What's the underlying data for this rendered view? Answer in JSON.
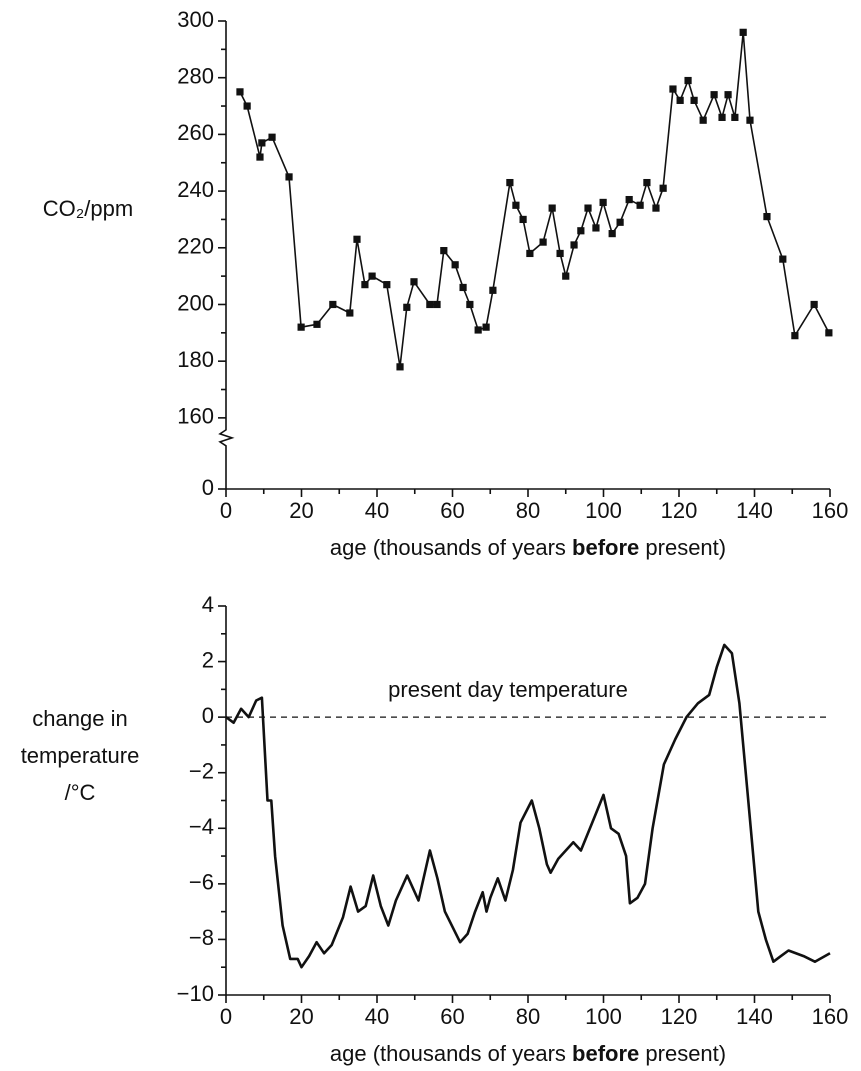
{
  "chart_data": [
    {
      "type": "scatter-line",
      "ylabel": "CO₂/ppm",
      "xlabel_parts": [
        "age (thousands of years ",
        "before",
        " present)"
      ],
      "x": [
        3.7,
        5.6,
        9.0,
        9.5,
        12.2,
        16.7,
        19.9,
        24.1,
        28.3,
        32.8,
        34.7,
        36.8,
        38.7,
        42.6,
        46.1,
        47.9,
        49.8,
        54.0,
        55.9,
        57.7,
        60.7,
        62.8,
        64.6,
        66.8,
        68.9,
        70.7,
        75.2,
        76.8,
        78.7,
        80.5,
        84.0,
        86.4,
        88.5,
        90.0,
        92.2,
        94.0,
        95.9,
        98.0,
        99.9,
        102.3,
        104.4,
        106.8,
        109.7,
        111.5,
        113.9,
        115.8,
        118.4,
        120.3,
        122.4,
        124.0,
        126.4,
        129.3,
        131.4,
        133.0,
        134.8,
        137.0,
        138.8,
        143.3,
        147.5,
        150.7,
        155.8,
        159.7
      ],
      "values": [
        275,
        270,
        252,
        257,
        259,
        245,
        192,
        193,
        200,
        197,
        223,
        207,
        210,
        207,
        178,
        199,
        208,
        200,
        200,
        219,
        214,
        206,
        200,
        191,
        192,
        205,
        243,
        235,
        230,
        218,
        222,
        234,
        218,
        210,
        221,
        226,
        234,
        227,
        236,
        225,
        229,
        237,
        235,
        243,
        234,
        241,
        276,
        272,
        279,
        272,
        265,
        274,
        266,
        274,
        266,
        296,
        265,
        231,
        216,
        189,
        200,
        190
      ],
      "color": "#111111",
      "xlim": [
        0,
        160
      ],
      "xticks": [
        0,
        20,
        40,
        60,
        80,
        100,
        120,
        140,
        160
      ],
      "ylim": [
        0,
        300
      ],
      "yticks": [
        0,
        160,
        180,
        200,
        220,
        240,
        260,
        280,
        300
      ],
      "axis_break": [
        0,
        160
      ]
    },
    {
      "type": "line",
      "ylabel_lines": [
        "change in",
        "temperature",
        "/°C"
      ],
      "xlabel_parts": [
        "age (thousands of years ",
        "before",
        " present)"
      ],
      "x": [
        0,
        2,
        4,
        6,
        8,
        9.5,
        11,
        12,
        13,
        15,
        17,
        19,
        20,
        22,
        24,
        26,
        28,
        31,
        33,
        35,
        37,
        39,
        41,
        43,
        45,
        48,
        51,
        54,
        56,
        58,
        62,
        64,
        66,
        68,
        69,
        70,
        72,
        74,
        76,
        78,
        81,
        83,
        85,
        86,
        88,
        92,
        94,
        97,
        100,
        102,
        104,
        106,
        107,
        109,
        111,
        113,
        116,
        119,
        122,
        125,
        128,
        130,
        132,
        134,
        136,
        138,
        141,
        143,
        145,
        147,
        149,
        153,
        156,
        160
      ],
      "values": [
        0,
        -0.2,
        0.3,
        0,
        0.6,
        0.7,
        -3,
        -3,
        -5,
        -7.5,
        -8.7,
        -8.7,
        -9,
        -8.6,
        -8.1,
        -8.5,
        -8.2,
        -7.2,
        -6.1,
        -7,
        -6.8,
        -5.7,
        -6.8,
        -7.5,
        -6.6,
        -5.7,
        -6.6,
        -4.8,
        -5.8,
        -7,
        -8.1,
        -7.8,
        -7,
        -6.3,
        -7,
        -6.5,
        -5.8,
        -6.6,
        -5.5,
        -3.8,
        -3,
        -4,
        -5.3,
        -5.6,
        -5.1,
        -4.5,
        -4.8,
        -3.8,
        -2.8,
        -4,
        -4.2,
        -5,
        -6.7,
        -6.5,
        -6,
        -4,
        -1.7,
        -0.8,
        0,
        0.5,
        0.8,
        1.8,
        2.6,
        2.3,
        0.5,
        -2.5,
        -7,
        -8,
        -8.8,
        -8.6,
        -8.4,
        -8.6,
        -8.8,
        -8.5
      ],
      "color": "#111111",
      "xlim": [
        0,
        160
      ],
      "xticks": [
        0,
        20,
        40,
        60,
        80,
        100,
        120,
        140,
        160
      ],
      "ylim": [
        -10,
        4
      ],
      "yticks": [
        {
          "value": -10,
          "label": "−10"
        },
        {
          "value": -8,
          "label": "−8"
        },
        {
          "value": -6,
          "label": "−6"
        },
        {
          "value": -4,
          "label": "−4"
        },
        {
          "value": -2,
          "label": "−2"
        },
        0,
        2,
        4
      ],
      "annotations": [
        {
          "text": "present day temperature",
          "y": 0
        }
      ]
    }
  ]
}
